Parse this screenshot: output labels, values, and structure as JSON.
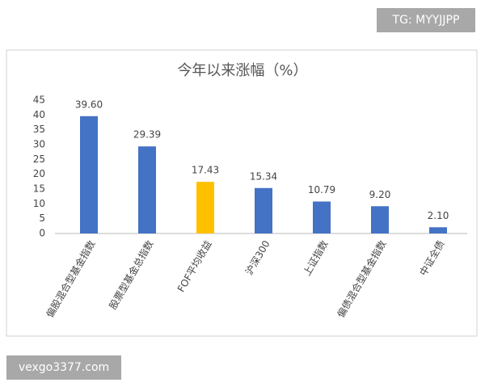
{
  "chart_data": {
    "type": "bar",
    "title": "今年以来涨幅（%）",
    "categories": [
      "偏股混合型基金指数",
      "股票型基金总指数",
      "FOF平均收益",
      "沪深300",
      "上证指数",
      "偏债混合型基金指数",
      "中证全债"
    ],
    "values": [
      39.6,
      29.39,
      17.43,
      15.34,
      10.79,
      9.2,
      2.1
    ],
    "value_labels": [
      "39.60",
      "29.39",
      "17.43",
      "15.34",
      "10.79",
      "9.20",
      "2.10"
    ],
    "colors": [
      "#4472c4",
      "#4472c4",
      "#ffc000",
      "#4472c4",
      "#4472c4",
      "#4472c4",
      "#4472c4"
    ],
    "ylim": [
      0,
      45
    ],
    "yticks": [
      0,
      5,
      10,
      15,
      20,
      25,
      30,
      35,
      40,
      45
    ],
    "grid": false
  },
  "watermarks": [
    "TG: MYYJJPP",
    "vexgo3377.com"
  ]
}
